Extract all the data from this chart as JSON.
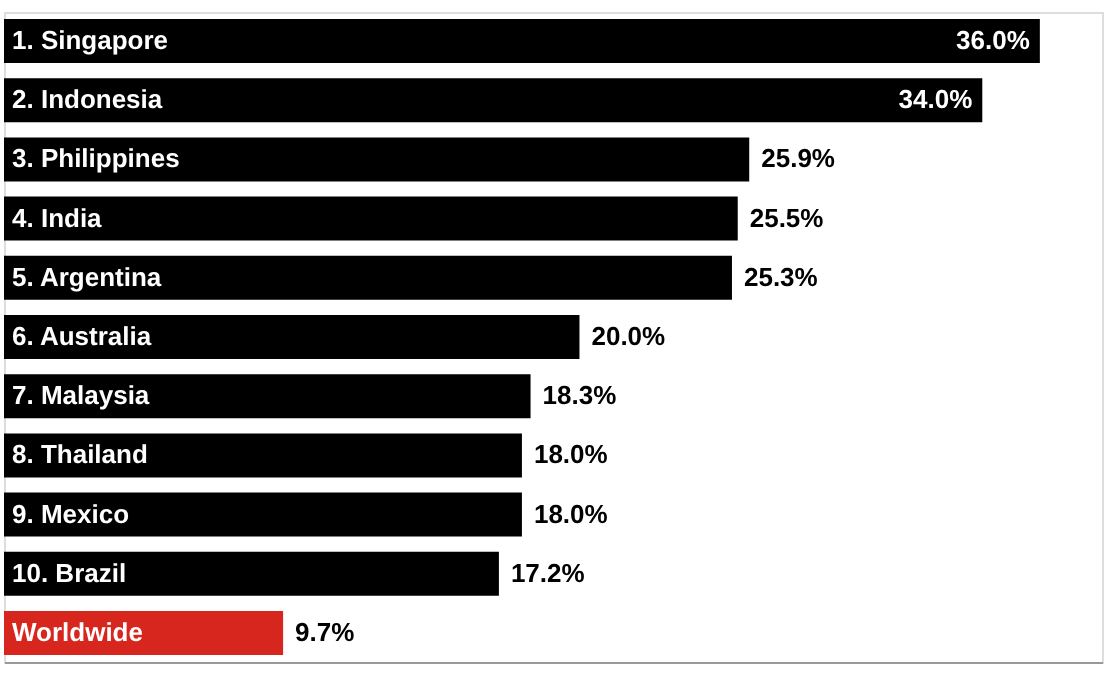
{
  "chart_data": {
    "type": "bar",
    "orientation": "horizontal",
    "categories": [
      "1. Singapore",
      "2. Indonesia",
      "3. Philippines",
      "4. India",
      "5. Argentina",
      "6. Australia",
      "7. Malaysia",
      "8. Thailand",
      "9. Mexico",
      "10. Brazil",
      "Worldwide"
    ],
    "values": [
      36.0,
      34.0,
      25.9,
      25.5,
      25.3,
      20.0,
      18.3,
      18.0,
      18.0,
      17.2,
      9.7
    ],
    "colors": [
      "#000000",
      "#000000",
      "#000000",
      "#000000",
      "#000000",
      "#000000",
      "#000000",
      "#000000",
      "#000000",
      "#000000",
      "#d7261e"
    ],
    "value_labels": [
      "36.0%",
      "34.0%",
      "25.9%",
      "25.5%",
      "25.3%",
      "20.0%",
      "18.3%",
      "18.0%",
      "18.0%",
      "17.2%",
      "9.7%"
    ],
    "grid": false
  }
}
